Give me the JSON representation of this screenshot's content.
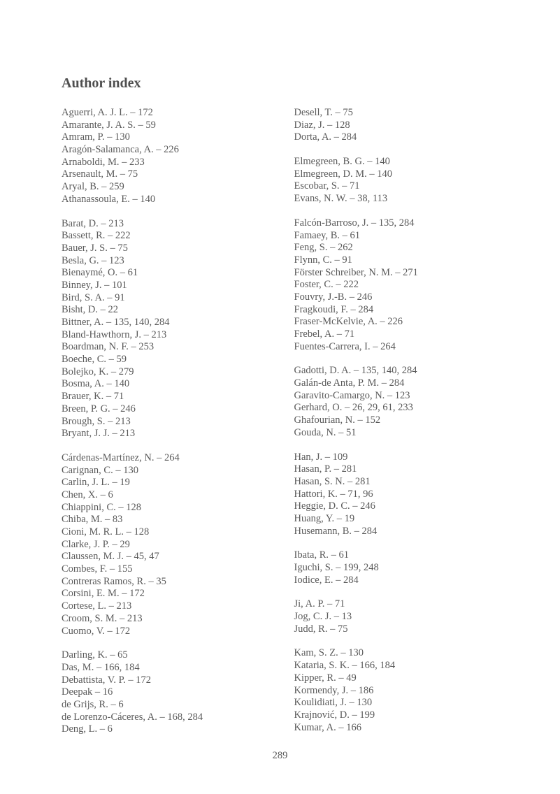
{
  "title": "Author index",
  "pageNumber": "289",
  "leftColumn": [
    [
      {
        "name": "Aguerri, A. J. L.",
        "pages": "172"
      },
      {
        "name": "Amarante, J. A. S.",
        "pages": "59"
      },
      {
        "name": "Amram, P.",
        "pages": "130"
      },
      {
        "name": "Aragón-Salamanca, A.",
        "pages": "226"
      },
      {
        "name": "Arnaboldi, M.",
        "pages": "233"
      },
      {
        "name": "Arsenault, M.",
        "pages": "75"
      },
      {
        "name": "Aryal, B.",
        "pages": "259"
      },
      {
        "name": "Athanassoula, E.",
        "pages": "140"
      }
    ],
    [
      {
        "name": "Barat, D.",
        "pages": "213"
      },
      {
        "name": "Bassett, R.",
        "pages": "222"
      },
      {
        "name": "Bauer, J. S.",
        "pages": "75"
      },
      {
        "name": "Besla, G.",
        "pages": "123"
      },
      {
        "name": "Bienaymé, O.",
        "pages": "61"
      },
      {
        "name": "Binney, J.",
        "pages": "101"
      },
      {
        "name": "Bird, S. A.",
        "pages": "91"
      },
      {
        "name": "Bisht, D.",
        "pages": "22"
      },
      {
        "name": "Bittner, A.",
        "pages": "135, 140, 284"
      },
      {
        "name": "Bland-Hawthorn, J.",
        "pages": "213"
      },
      {
        "name": "Boardman, N. F.",
        "pages": "253"
      },
      {
        "name": "Boeche, C.",
        "pages": "59"
      },
      {
        "name": "Bolejko, K.",
        "pages": "279"
      },
      {
        "name": "Bosma, A.",
        "pages": "140"
      },
      {
        "name": "Brauer, K.",
        "pages": "71"
      },
      {
        "name": "Breen, P. G.",
        "pages": "246"
      },
      {
        "name": "Brough, S.",
        "pages": "213"
      },
      {
        "name": "Bryant, J. J.",
        "pages": "213"
      }
    ],
    [
      {
        "name": "Cárdenas-Martínez, N.",
        "pages": "264"
      },
      {
        "name": "Carignan, C.",
        "pages": "130"
      },
      {
        "name": "Carlin, J. L.",
        "pages": "19"
      },
      {
        "name": "Chen, X.",
        "pages": "6"
      },
      {
        "name": "Chiappini, C.",
        "pages": "128"
      },
      {
        "name": "Chiba, M.",
        "pages": "83"
      },
      {
        "name": "Cioni, M. R. L.",
        "pages": "128"
      },
      {
        "name": "Clarke, J. P.",
        "pages": "29"
      },
      {
        "name": "Claussen, M. J.",
        "pages": "45, 47"
      },
      {
        "name": "Combes, F.",
        "pages": "155"
      },
      {
        "name": "Contreras Ramos, R.",
        "pages": "35"
      },
      {
        "name": "Corsini, E. M.",
        "pages": "172"
      },
      {
        "name": "Cortese, L.",
        "pages": "213"
      },
      {
        "name": "Croom, S. M.",
        "pages": "213"
      },
      {
        "name": "Cuomo, V.",
        "pages": "172"
      }
    ],
    [
      {
        "name": "Darling, K.",
        "pages": "65"
      },
      {
        "name": "Das, M.",
        "pages": "166, 184"
      },
      {
        "name": "Debattista, V. P.",
        "pages": "172"
      },
      {
        "name": "Deepak",
        "pages": "16"
      },
      {
        "name": "de Grijs, R.",
        "pages": "6"
      },
      {
        "name": "de Lorenzo-Cáceres, A.",
        "pages": "168, 284"
      },
      {
        "name": "Deng, L.",
        "pages": "6"
      }
    ]
  ],
  "rightColumn": [
    [
      {
        "name": "Desell, T.",
        "pages": "75"
      },
      {
        "name": "Diaz, J.",
        "pages": "128"
      },
      {
        "name": "Dorta, A.",
        "pages": "284"
      }
    ],
    [
      {
        "name": "Elmegreen, B. G.",
        "pages": "140"
      },
      {
        "name": "Elmegreen, D. M.",
        "pages": "140"
      },
      {
        "name": "Escobar, S.",
        "pages": "71"
      },
      {
        "name": "Evans, N. W.",
        "pages": "38, 113"
      }
    ],
    [
      {
        "name": "Falcón-Barroso, J.",
        "pages": "135, 284"
      },
      {
        "name": "Famaey, B.",
        "pages": "61"
      },
      {
        "name": "Feng, S.",
        "pages": "262"
      },
      {
        "name": "Flynn, C.",
        "pages": "91"
      },
      {
        "name": "Förster Schreiber, N. M.",
        "pages": "271"
      },
      {
        "name": "Foster, C.",
        "pages": "222"
      },
      {
        "name": "Fouvry, J.-B.",
        "pages": "246"
      },
      {
        "name": "Fragkoudi, F.",
        "pages": "284"
      },
      {
        "name": "Fraser-McKelvie, A.",
        "pages": "226"
      },
      {
        "name": "Frebel, A.",
        "pages": "71"
      },
      {
        "name": "Fuentes-Carrera, I.",
        "pages": "264"
      }
    ],
    [
      {
        "name": "Gadotti, D. A.",
        "pages": "135, 140, 284"
      },
      {
        "name": "Galán-de Anta, P. M.",
        "pages": "284"
      },
      {
        "name": "Garavito-Camargo, N.",
        "pages": "123"
      },
      {
        "name": "Gerhard, O.",
        "pages": "26, 29, 61, 233"
      },
      {
        "name": "Ghafourian, N.",
        "pages": "152"
      },
      {
        "name": "Gouda, N.",
        "pages": "51"
      }
    ],
    [
      {
        "name": "Han, J.",
        "pages": "109"
      },
      {
        "name": "Hasan, P.",
        "pages": "281"
      },
      {
        "name": "Hasan, S. N.",
        "pages": "281"
      },
      {
        "name": "Hattori, K.",
        "pages": "71, 96"
      },
      {
        "name": "Heggie, D. C.",
        "pages": "246"
      },
      {
        "name": "Huang, Y.",
        "pages": "19"
      },
      {
        "name": "Husemann, B.",
        "pages": "284"
      }
    ],
    [
      {
        "name": "Ibata, R.",
        "pages": "61"
      },
      {
        "name": "Iguchi, S.",
        "pages": "199, 248"
      },
      {
        "name": "Iodice, E.",
        "pages": "284"
      }
    ],
    [
      {
        "name": "Ji, A. P.",
        "pages": "71"
      },
      {
        "name": "Jog, C. J.",
        "pages": "13"
      },
      {
        "name": "Judd, R.",
        "pages": "75"
      }
    ],
    [
      {
        "name": "Kam, S. Z.",
        "pages": "130"
      },
      {
        "name": "Kataria, S. K.",
        "pages": "166, 184"
      },
      {
        "name": "Kipper, R.",
        "pages": "49"
      },
      {
        "name": "Kormendy, J.",
        "pages": "186"
      },
      {
        "name": "Koulidiati, J.",
        "pages": "130"
      },
      {
        "name": "Krajnović, D.",
        "pages": "199"
      },
      {
        "name": "Kumar, A.",
        "pages": "166"
      }
    ]
  ]
}
